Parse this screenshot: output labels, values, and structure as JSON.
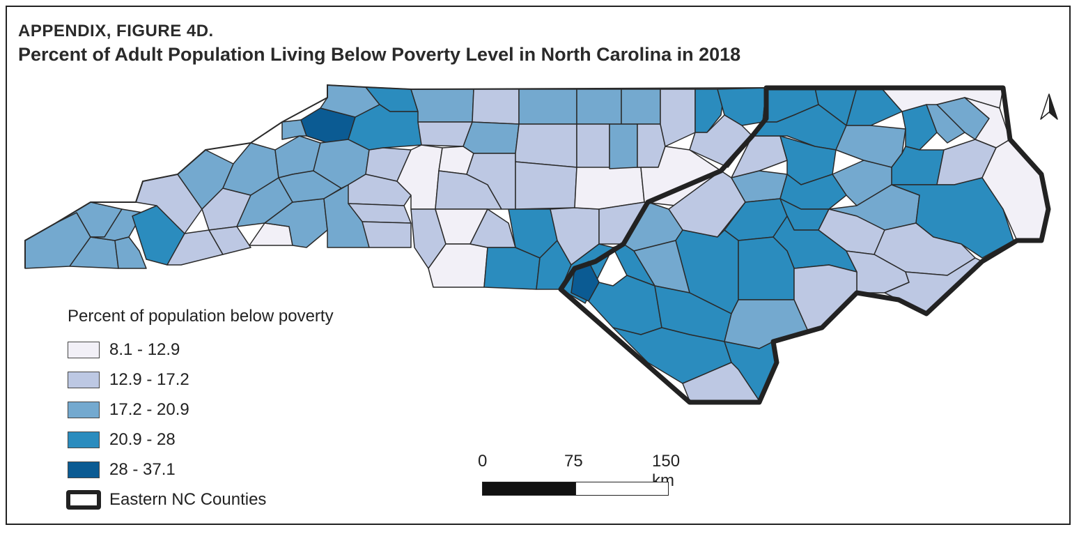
{
  "figure": {
    "label": "APPENDIX, FIGURE 4D.",
    "title": "Percent of Adult Population Living Below Poverty Level in North Carolina in 2018"
  },
  "legend": {
    "title": "Percent of population below poverty",
    "classes": [
      {
        "label": "8.1 - 12.9",
        "color": "#f2f0f7"
      },
      {
        "label": "12.9 - 17.2",
        "color": "#bdc8e3"
      },
      {
        "label": "17.2 - 20.9",
        "color": "#74a9cf"
      },
      {
        "label": "20.9 - 28",
        "color": "#2b8cbe"
      },
      {
        "label": "28 - 37.1",
        "color": "#0b5b93"
      }
    ],
    "outline_label": "Eastern NC Counties"
  },
  "scale_bar": {
    "labels": [
      "0",
      "75",
      "150 km"
    ]
  },
  "map": {
    "north_arrow": "north-arrow-icon",
    "eastern_outline_color": "#222222"
  }
}
